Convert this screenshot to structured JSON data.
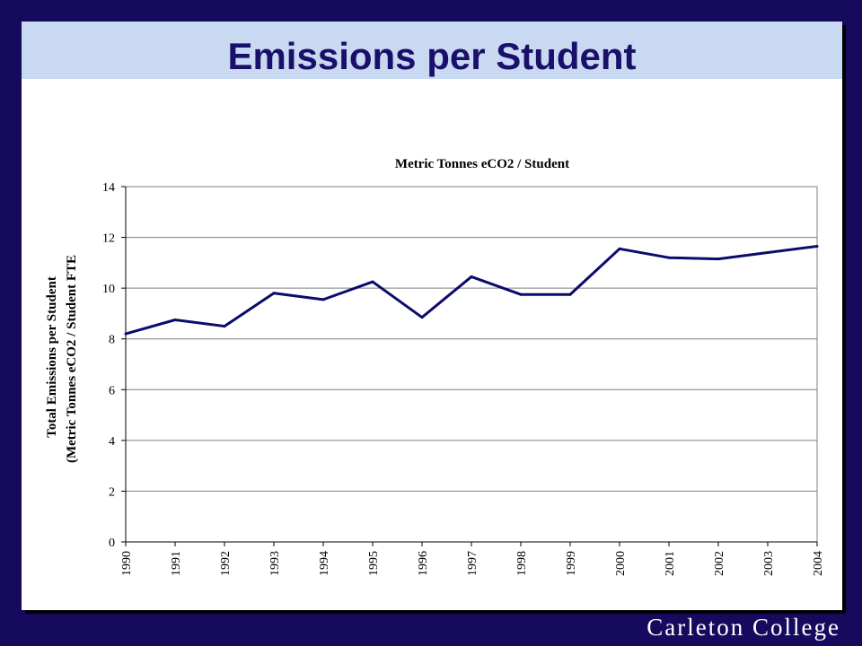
{
  "slide": {
    "title": "Emissions per Student",
    "footer": "Carleton College"
  },
  "colors": {
    "background": "#150a5e",
    "title_band": "#c9d9f2",
    "title_text": "#1a0f6b",
    "series_line": "#0b0b6e",
    "grid": "#7f7f7f"
  },
  "chart_data": {
    "type": "line",
    "title": "Metric Tonnes eCO2 / Student",
    "ylabel": "Total Emissions per Student",
    "ylabel2": "(Metric Tonnes eCO2 / Student FTE",
    "xlabel": "",
    "ylim": [
      0,
      14
    ],
    "yticks": [
      0,
      2,
      4,
      6,
      8,
      10,
      12,
      14
    ],
    "grid": true,
    "legend": "none",
    "categories": [
      "1990",
      "1991",
      "1992",
      "1993",
      "1994",
      "1995",
      "1996",
      "1997",
      "1998",
      "1999",
      "2000",
      "2001",
      "2002",
      "2003",
      "2004"
    ],
    "series": [
      {
        "values": [
          8.2,
          8.75,
          8.5,
          9.8,
          9.55,
          10.25,
          8.85,
          10.45,
          9.75,
          9.75,
          11.55,
          11.2,
          11.15,
          11.4,
          11.65
        ]
      }
    ]
  }
}
